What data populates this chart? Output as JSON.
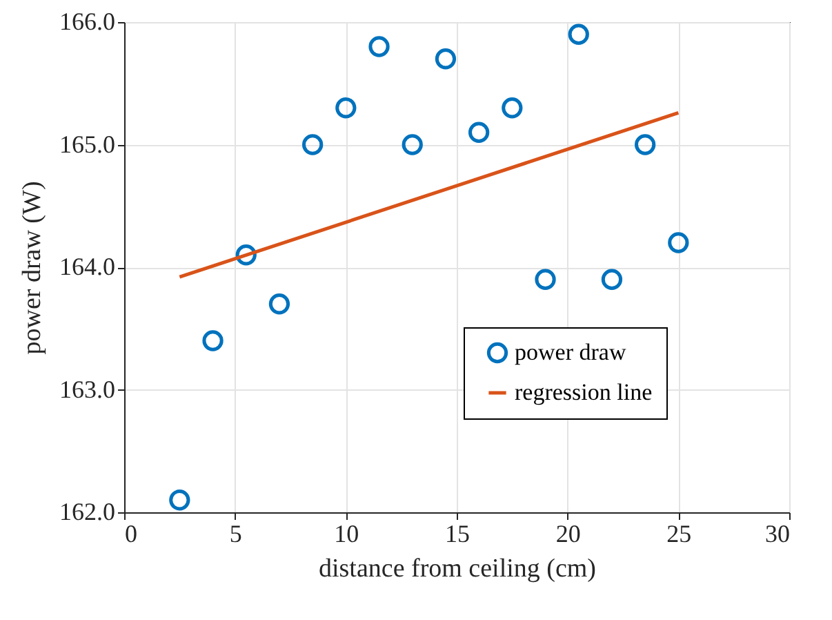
{
  "chart_data": {
    "type": "scatter",
    "xlabel": "distance from ceiling (cm)",
    "ylabel": "power draw (W)",
    "xlim": [
      0,
      30
    ],
    "xticks": [
      0,
      5,
      10,
      15,
      20,
      25,
      30
    ],
    "ylim": [
      162,
      166
    ],
    "yticks": [
      {
        "value": 162,
        "label": "162.0"
      },
      {
        "value": 163,
        "label": "163.0"
      },
      {
        "value": 164,
        "label": "164.0"
      },
      {
        "value": 165,
        "label": "165.0"
      },
      {
        "value": 166,
        "label": "166.0"
      }
    ],
    "grid": true,
    "legend": "right",
    "x": [
      2.5,
      4,
      5.5,
      7,
      8.5,
      10,
      11.5,
      13,
      14.5,
      16,
      17.5,
      19,
      20.5,
      22,
      23.5,
      25
    ],
    "series": [
      {
        "name": "power draw",
        "marker": "circle",
        "color": "#0072bd",
        "values": [
          162.1,
          163.4,
          164.1,
          163.7,
          165.0,
          165.3,
          165.8,
          165.0,
          165.7,
          165.1,
          165.3,
          163.9,
          165.9,
          163.9,
          165.0,
          164.2
        ]
      },
      {
        "name": "regression line",
        "type": "line",
        "color": "#d95319",
        "x": [
          2.5,
          25
        ],
        "values": [
          163.92,
          165.26
        ]
      }
    ]
  }
}
